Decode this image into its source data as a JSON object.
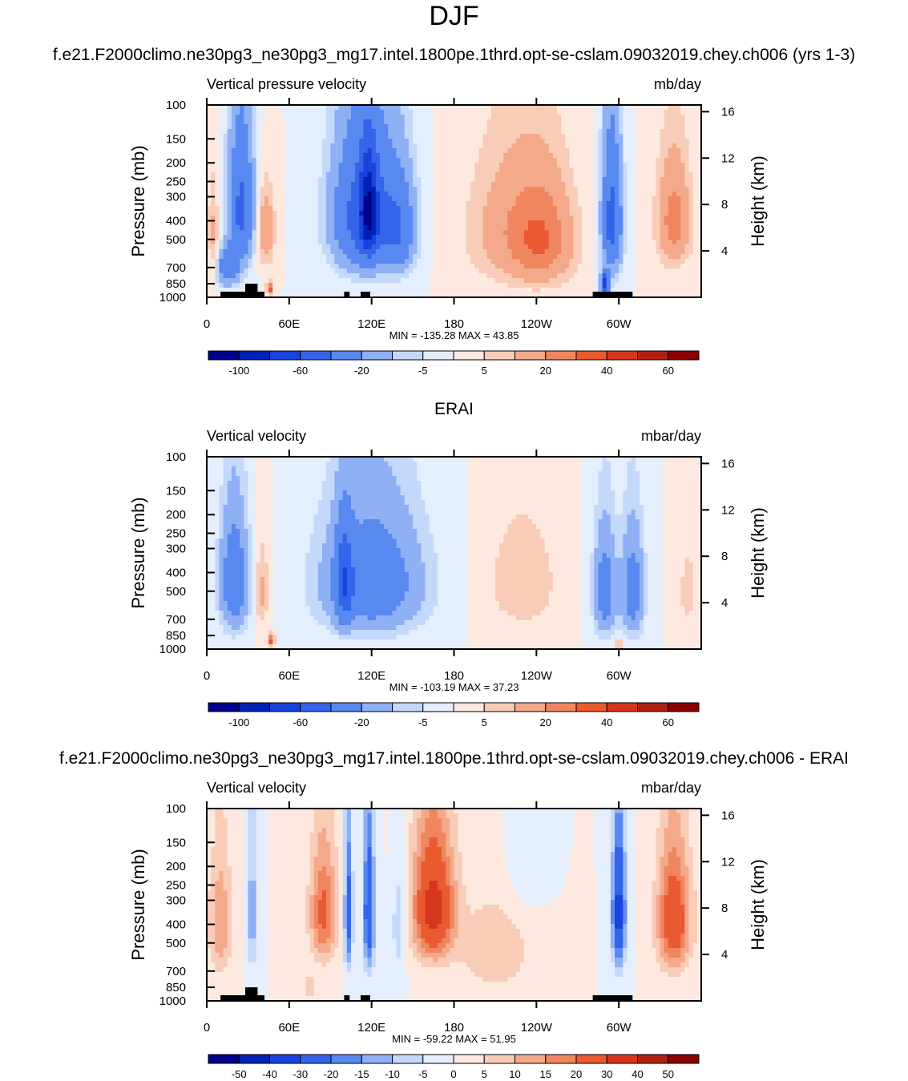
{
  "page_title": "DJF",
  "subtitle_model": "f.e21.F2000climo.ne30pg3_ne30pg3_mg17.intel.1800pe.1thrd.opt-se-cslam.09032019.chey.ch006 (yrs 1-3)",
  "subtitle_obs": "ERAI",
  "subtitle_diff": "f.e21.F2000climo.ne30pg3_ne30pg3_mg17.intel.1800pe.1thrd.opt-se-cslam.09032019.chey.ch006 - ERAI",
  "colors": {
    "cmap_main": [
      "#00008b",
      "#0022b4",
      "#1843dc",
      "#3464ea",
      "#5889f0",
      "#8fb0f5",
      "#c4d8fa",
      "#e4eefc",
      "#fde9df",
      "#f9ccb8",
      "#f4a98a",
      "#ef8660",
      "#ea5a31",
      "#d6361b",
      "#b1210f",
      "#8b0000"
    ],
    "cmap_diff": [
      "#00008b",
      "#0022b4",
      "#1843dc",
      "#3464ea",
      "#5889f0",
      "#8fb0f5",
      "#c4d8fa",
      "#e4eefc",
      "#fde9df",
      "#f9ccb8",
      "#f4a98a",
      "#ef8660",
      "#ea5a31",
      "#d6361b",
      "#b1210f",
      "#8b0000"
    ],
    "land": "#000000"
  },
  "chart_data": [
    {
      "type": "heatmap",
      "name": "model",
      "title_left": "Vertical pressure velocity",
      "title_right": "mb/day",
      "ylabel": "Pressure (mb)",
      "ylabel_right": "Height (km)",
      "pressure_ticks": [
        "100",
        "150",
        "200",
        "250",
        "300",
        "400",
        "500",
        "700",
        "850",
        "1000"
      ],
      "height_ticks": [
        "16",
        "12",
        "8",
        "4"
      ],
      "lon_ticks": [
        "0",
        "60E",
        "120E",
        "180",
        "120W",
        "60W"
      ],
      "stats": "MIN = -135.28  MAX =  43.85",
      "colorbar_labels": [
        "-100",
        "-60",
        "-20",
        "-5",
        "5",
        "20",
        "40",
        "60"
      ],
      "cmap": "main",
      "features": [
        {
          "lon": 25,
          "p": 350,
          "dlon": 9,
          "dp": 280,
          "v": -45
        },
        {
          "lon": 15,
          "p": 700,
          "dlon": 8,
          "dp": 150,
          "v": -35
        },
        {
          "lon": 43,
          "p": 450,
          "dlon": 6,
          "dp": 200,
          "v": 20
        },
        {
          "lon": 46,
          "p": 900,
          "dlon": 2,
          "dp": 60,
          "v": 40
        },
        {
          "lon": 115,
          "p": 380,
          "dlon": 22,
          "dp": 300,
          "v": -55
        },
        {
          "lon": 118,
          "p": 350,
          "dlon": 6,
          "dp": 200,
          "v": -60
        },
        {
          "lon": 140,
          "p": 450,
          "dlon": 12,
          "dp": 250,
          "v": -30
        },
        {
          "lon": 220,
          "p": 450,
          "dlon": 30,
          "dp": 350,
          "v": 15
        },
        {
          "lon": 245,
          "p": 500,
          "dlon": 22,
          "dp": 300,
          "v": 25
        },
        {
          "lon": 295,
          "p": 400,
          "dlon": 7,
          "dp": 300,
          "v": -50
        },
        {
          "lon": 290,
          "p": 850,
          "dlon": 3,
          "dp": 100,
          "v": -70
        },
        {
          "lon": 340,
          "p": 400,
          "dlon": 12,
          "dp": 250,
          "v": 25
        },
        {
          "lon": 5,
          "p": 500,
          "dlon": 4,
          "dp": 300,
          "v": 12
        }
      ]
    },
    {
      "type": "heatmap",
      "name": "obs",
      "title_left": "Vertical velocity",
      "title_right": "mbar/day",
      "ylabel": "Pressure (mb)",
      "ylabel_right": "Height (km)",
      "pressure_ticks": [
        "100",
        "150",
        "200",
        "250",
        "300",
        "400",
        "500",
        "700",
        "850",
        "1000"
      ],
      "height_ticks": [
        "16",
        "12",
        "8",
        "4"
      ],
      "lon_ticks": [
        "0",
        "60E",
        "120E",
        "180",
        "120W",
        "60W"
      ],
      "stats": "MIN = -103.19  MAX =  37.23",
      "colorbar_labels": [
        "-100",
        "-60",
        "-20",
        "-5",
        "5",
        "20",
        "40",
        "60"
      ],
      "cmap": "main",
      "features": [
        {
          "lon": 20,
          "p": 450,
          "dlon": 10,
          "dp": 300,
          "v": -35
        },
        {
          "lon": 40,
          "p": 500,
          "dlon": 5,
          "dp": 250,
          "v": 12
        },
        {
          "lon": 47,
          "p": 900,
          "dlon": 2,
          "dp": 60,
          "v": 35
        },
        {
          "lon": 120,
          "p": 450,
          "dlon": 35,
          "dp": 320,
          "v": -35
        },
        {
          "lon": 100,
          "p": 450,
          "dlon": 6,
          "dp": 250,
          "v": -40
        },
        {
          "lon": 230,
          "p": 450,
          "dlon": 25,
          "dp": 300,
          "v": 10
        },
        {
          "lon": 290,
          "p": 500,
          "dlon": 8,
          "dp": 300,
          "v": -30
        },
        {
          "lon": 310,
          "p": 500,
          "dlon": 8,
          "dp": 300,
          "v": -30
        },
        {
          "lon": 350,
          "p": 500,
          "dlon": 6,
          "dp": 250,
          "v": 8
        },
        {
          "lon": 300,
          "p": 950,
          "dlon": 1.5,
          "dp": 60,
          "v": 30
        }
      ]
    },
    {
      "type": "heatmap",
      "name": "diff",
      "title_left": "Vertical velocity",
      "title_right": "mbar/day",
      "ylabel": "Pressure (mb)",
      "ylabel_right": "Height (km)",
      "pressure_ticks": [
        "100",
        "150",
        "200",
        "250",
        "300",
        "400",
        "500",
        "700",
        "850",
        "1000"
      ],
      "height_ticks": [
        "16",
        "12",
        "8",
        "4"
      ],
      "lon_ticks": [
        "0",
        "60E",
        "120E",
        "180",
        "120W",
        "60W"
      ],
      "stats": "MIN = -59.22  MAX =  51.95",
      "colorbar_labels": [
        "-50",
        "-40",
        "-30",
        "-20",
        "-15",
        "-10",
        "-5",
        "0",
        "5",
        "10",
        "15",
        "20",
        "30",
        "40",
        "50"
      ],
      "cmap": "diff",
      "features": [
        {
          "lon": 85,
          "p": 350,
          "dlon": 10,
          "dp": 250,
          "v": 22
        },
        {
          "lon": 103,
          "p": 350,
          "dlon": 3,
          "dp": 300,
          "v": -25
        },
        {
          "lon": 118,
          "p": 350,
          "dlon": 4,
          "dp": 300,
          "v": -30
        },
        {
          "lon": 165,
          "p": 330,
          "dlon": 15,
          "dp": 250,
          "v": 35
        },
        {
          "lon": 300,
          "p": 350,
          "dlon": 5,
          "dp": 280,
          "v": -35
        },
        {
          "lon": 340,
          "p": 380,
          "dlon": 12,
          "dp": 280,
          "v": 28
        },
        {
          "lon": 10,
          "p": 400,
          "dlon": 8,
          "dp": 300,
          "v": 15
        },
        {
          "lon": 33,
          "p": 350,
          "dlon": 3,
          "dp": 300,
          "v": -15
        },
        {
          "lon": 140,
          "p": 400,
          "dlon": 5,
          "dp": 250,
          "v": -10
        },
        {
          "lon": 75,
          "p": 850,
          "dlon": 3,
          "dp": 120,
          "v": 12
        },
        {
          "lon": 210,
          "p": 550,
          "dlon": 25,
          "dp": 300,
          "v": 10
        },
        {
          "lon": 230,
          "p": 200,
          "dlon": 15,
          "dp": 150,
          "v": -4
        }
      ]
    }
  ],
  "land_blocks": [
    {
      "lon0": 10,
      "lon1": 42,
      "p": 1000
    },
    {
      "lon0": 28,
      "lon1": 37,
      "p": 850
    },
    {
      "lon0": 100,
      "lon1": 104,
      "p": 1000
    },
    {
      "lon0": 112,
      "lon1": 119,
      "p": 1000
    },
    {
      "lon0": 281,
      "lon1": 310,
      "p": 1000
    },
    {
      "lon0": 287,
      "lon1": 293,
      "p": 950
    }
  ]
}
